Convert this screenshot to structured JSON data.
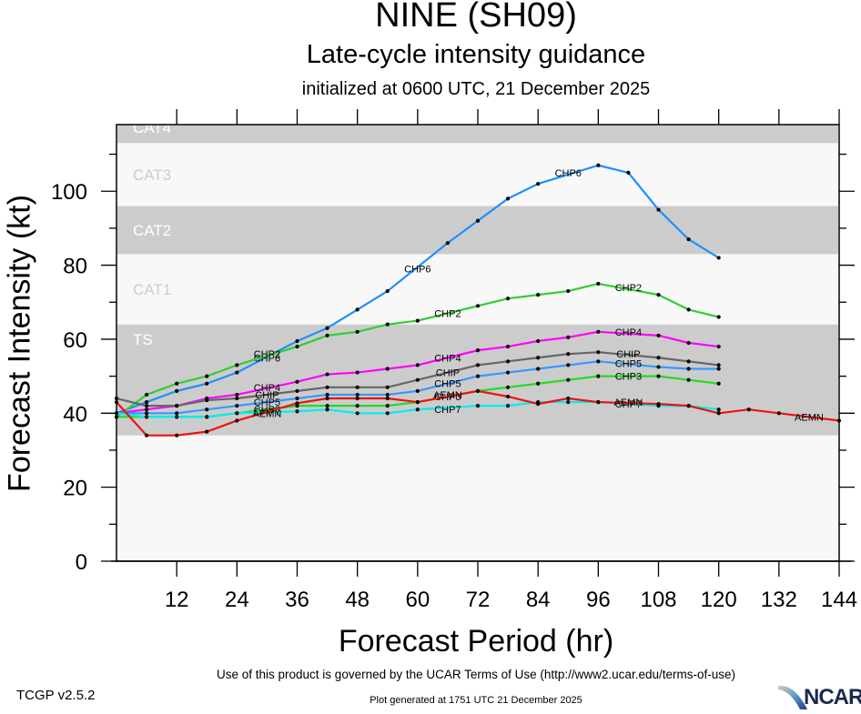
{
  "header": {
    "title": "NINE (SH09)",
    "subtitle": "Late-cycle intensity guidance",
    "initialized": "initialized at 0600 UTC, 21 December 2025"
  },
  "footer": {
    "terms": "Use of this product is governed by the UCAR Terms of Use (http://www2.ucar.edu/terms-of-use)",
    "generated": "Plot generated at 1751 UTC   21 December 2025",
    "version": "TCGP v2.5.2",
    "logo_text": "NCAR"
  },
  "chart_data": {
    "type": "line",
    "title": "NINE (SH09)",
    "subtitle": "Late-cycle intensity guidance",
    "xlabel": "Forecast Period (hr)",
    "ylabel": "Forecast Intensity (kt)",
    "xlim": [
      0,
      144
    ],
    "ylim": [
      0,
      118
    ],
    "xticks": [
      12,
      24,
      36,
      48,
      60,
      72,
      84,
      96,
      108,
      120,
      132,
      144
    ],
    "xtick_labels": [
      "12",
      "24",
      "36",
      "48",
      "60",
      "72",
      "84",
      "96",
      "108",
      "120",
      "132",
      "144"
    ],
    "xminor_step": 6,
    "yticks": [
      0,
      20,
      40,
      60,
      80,
      100
    ],
    "ytick_labels": [
      "0",
      "20",
      "40",
      "60",
      "80",
      "100"
    ],
    "yminor_step": 10,
    "grid": false,
    "legend": "none (inline line labels)",
    "bands": [
      {
        "name": "TS",
        "from": 34,
        "to": 64,
        "fill": "#cccccc",
        "label_color": "#ffffff"
      },
      {
        "name": "CAT1",
        "from": 64,
        "to": 83,
        "fill": "#f8f8f8",
        "label_color": "#cccccc"
      },
      {
        "name": "CAT2",
        "from": 83,
        "to": 96,
        "fill": "#cccccc",
        "label_color": "#ffffff"
      },
      {
        "name": "CAT3",
        "from": 96,
        "to": 113,
        "fill": "#f8f8f8",
        "label_color": "#cccccc"
      },
      {
        "name": "CAT4",
        "from": 113,
        "to": 137,
        "fill": "#cccccc",
        "label_color": "#ffffff"
      }
    ],
    "below_ts_fill": "#f8f8f8",
    "series": [
      {
        "name": "CHP6",
        "color": "#1e90ff",
        "x": [
          0,
          6,
          12,
          18,
          24,
          36,
          42,
          48,
          54,
          66,
          72,
          78,
          84,
          96,
          102,
          108,
          114,
          120
        ],
        "y": [
          40,
          43,
          46,
          48,
          51,
          59.5,
          63,
          68,
          73,
          86,
          92,
          98,
          102,
          107,
          105,
          95,
          87,
          82
        ],
        "labels_at": [
          [
            30,
            55
          ],
          [
            60,
            79
          ],
          [
            90,
            105
          ]
        ]
      },
      {
        "name": "CHP2",
        "color": "#32cd32",
        "x": [
          0,
          6,
          12,
          18,
          24,
          36,
          42,
          48,
          54,
          60,
          72,
          78,
          84,
          90,
          96,
          108,
          114,
          120
        ],
        "y": [
          39,
          45,
          48,
          50,
          53,
          58,
          61,
          62,
          64,
          65,
          69,
          71,
          72,
          73,
          75,
          72,
          68,
          66
        ],
        "labels_at": [
          [
            30,
            56
          ],
          [
            66,
            67
          ],
          [
            102,
            74
          ]
        ]
      },
      {
        "name": "CHP4",
        "color": "#ff00ff",
        "x": [
          0,
          6,
          12,
          18,
          24,
          36,
          42,
          48,
          54,
          60,
          72,
          78,
          84,
          90,
          96,
          108,
          114,
          120
        ],
        "y": [
          40,
          41,
          42,
          44,
          45,
          48.5,
          50.5,
          51,
          52,
          53,
          57,
          58,
          59.5,
          60.5,
          62,
          61,
          59,
          58
        ],
        "labels_at": [
          [
            30,
            47
          ],
          [
            66,
            55
          ],
          [
            102,
            62
          ]
        ]
      },
      {
        "name": "CHIP",
        "color": "#666666",
        "x": [
          0,
          6,
          12,
          18,
          24,
          36,
          42,
          48,
          54,
          60,
          72,
          78,
          84,
          90,
          96,
          108,
          114,
          120
        ],
        "y": [
          44,
          42,
          42,
          43.5,
          44,
          46,
          47,
          47,
          47,
          49,
          53,
          54,
          55,
          56,
          56.5,
          55,
          54,
          53
        ],
        "labels_at": [
          [
            30,
            45
          ],
          [
            66,
            51
          ],
          [
            102,
            56
          ]
        ]
      },
      {
        "name": "CHP5",
        "color": "#3399ff",
        "x": [
          0,
          6,
          12,
          18,
          24,
          36,
          42,
          48,
          54,
          60,
          72,
          78,
          84,
          90,
          96,
          108,
          114,
          120
        ],
        "y": [
          40,
          40,
          40,
          41,
          42,
          44,
          45,
          45,
          45,
          46,
          50,
          51,
          52,
          53,
          54,
          52.5,
          52,
          52
        ],
        "labels_at": [
          [
            30,
            43
          ],
          [
            66,
            48
          ],
          [
            102,
            53.5
          ]
        ]
      },
      {
        "name": "CHP3",
        "color": "#22dd22",
        "x": [
          0,
          6,
          12,
          18,
          24,
          36,
          42,
          48,
          54,
          60,
          72,
          78,
          84,
          90,
          96,
          108,
          114,
          120
        ],
        "y": [
          39,
          39,
          39,
          39,
          40,
          42,
          42,
          42,
          42,
          43,
          46,
          47,
          48,
          49,
          50,
          50,
          49,
          48
        ],
        "labels_at": [
          [
            30,
            41
          ],
          [
            66,
            44.5
          ],
          [
            102,
            50
          ]
        ]
      },
      {
        "name": "CHP7",
        "color": "#00eeee",
        "x": [
          0,
          6,
          12,
          18,
          24,
          36,
          42,
          48,
          54,
          60,
          72,
          78,
          84,
          90,
          96,
          108,
          114,
          120
        ],
        "y": [
          40,
          39,
          39,
          39,
          40,
          40.5,
          41,
          40,
          40,
          41,
          42,
          42,
          43,
          43,
          43,
          42,
          42,
          41
        ],
        "labels_at": [
          [
            30,
            40.5
          ],
          [
            66,
            41
          ],
          [
            102,
            42.5
          ]
        ]
      },
      {
        "name": "AEMN",
        "color": "#ee1111",
        "x": [
          0,
          6,
          12,
          18,
          24,
          36,
          42,
          48,
          54,
          60,
          72,
          78,
          84,
          90,
          96,
          108,
          114,
          120,
          126,
          132,
          144
        ],
        "y": [
          43,
          34,
          34,
          35,
          38,
          42.7,
          44,
          44,
          44,
          43,
          46,
          44.5,
          42.5,
          44,
          43,
          42.5,
          42,
          40,
          41,
          40,
          38
        ],
        "labels_at": [
          [
            30,
            40
          ],
          [
            66,
            45
          ],
          [
            102,
            43
          ],
          [
            138,
            39
          ]
        ]
      }
    ]
  }
}
